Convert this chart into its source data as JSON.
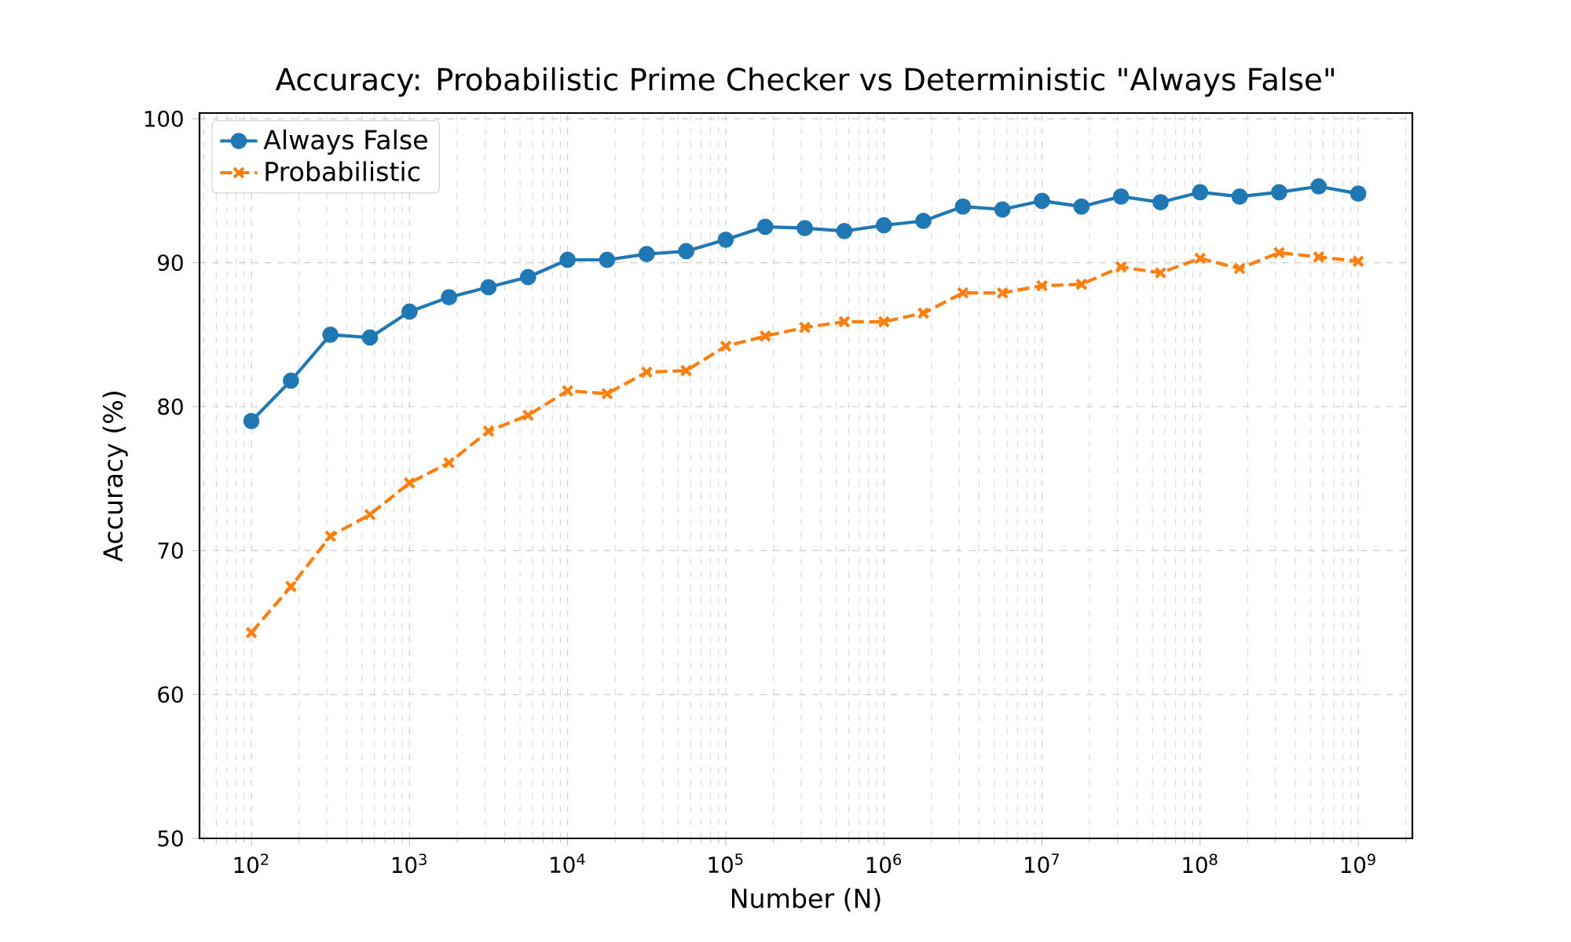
{
  "chart_data": {
    "type": "line",
    "title": "Accuracy: Probabilistic Prime Checker vs Deterministic \"Always False\"",
    "xlabel": "Number (N)",
    "ylabel": "Accuracy (%)",
    "log": "x",
    "grid": true,
    "legend": "top left",
    "x": [
      100.0,
      177.8,
      316.2,
      562.3,
      1000.0,
      1778.0,
      3162.0,
      5623.0,
      10000.0,
      17780.0,
      31620.0,
      56230.0,
      100000.0,
      177800.0,
      316200.0,
      562300.0,
      1000000.0,
      1778000.0,
      3162000.0,
      5623000.0,
      10000000.0,
      17780000.0,
      31620000.0,
      56230000.0,
      100000000.0,
      177800000.0,
      316200000.0,
      562300000.0,
      1000000000.0
    ],
    "series": [
      {
        "name": "Always False",
        "color": "#1f77b4",
        "marker": "circle",
        "line_style": "solid",
        "values": [
          79.0,
          81.8,
          85.0,
          84.8,
          86.6,
          87.6,
          88.3,
          89.0,
          90.2,
          90.2,
          90.6,
          90.8,
          91.6,
          92.5,
          92.4,
          92.2,
          92.6,
          92.9,
          93.9,
          93.7,
          94.3,
          93.9,
          94.6,
          94.2,
          94.9,
          94.6,
          94.9,
          95.3,
          94.8
        ]
      },
      {
        "name": "Probabilistic",
        "color": "#ff7f0e",
        "marker": "cross",
        "line_style": "dashed",
        "values": [
          64.3,
          67.5,
          71.0,
          72.5,
          74.7,
          76.1,
          78.3,
          79.4,
          81.1,
          80.9,
          82.4,
          82.5,
          84.2,
          84.9,
          85.5,
          85.9,
          85.9,
          86.5,
          87.9,
          87.9,
          88.4,
          88.5,
          89.7,
          89.3,
          90.3,
          89.6,
          90.7,
          90.4,
          90.1
        ]
      }
    ],
    "xlim": [
      47,
      2200000000.0
    ],
    "ylim": [
      50,
      100.4
    ],
    "xticks": [
      {
        "value": 100.0,
        "label": "10$^{2}$"
      },
      {
        "value": 1000.0,
        "label": "10$^{3}$"
      },
      {
        "value": 10000.0,
        "label": "10$^{4}$"
      },
      {
        "value": 100000.0,
        "label": "10$^{5}$"
      },
      {
        "value": 1000000.0,
        "label": "10$^{6}$"
      },
      {
        "value": 10000000.0,
        "label": "10$^{7}$"
      },
      {
        "value": 100000000.0,
        "label": "10$^{8}$"
      },
      {
        "value": 1000000000.0,
        "label": "10$^{9}$"
      }
    ],
    "yticks": [
      50,
      60,
      70,
      80,
      90,
      100
    ]
  }
}
